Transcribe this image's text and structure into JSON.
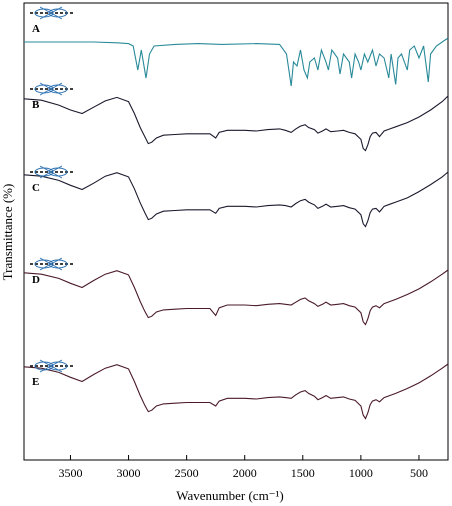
{
  "chart_data": {
    "type": "line",
    "xlabel": "Wavenumber (cm⁻¹)",
    "ylabel": "Transmittance (%)",
    "xlim": [
      3900,
      250
    ],
    "x_reversed": true,
    "x_ticks": [
      3500,
      3000,
      2500,
      2000,
      1500,
      1000,
      500
    ],
    "y_ticks_shown": false,
    "grid": false,
    "legend": "none",
    "series": [
      {
        "label": "A",
        "color": "#2a8a9a",
        "points": [
          [
            3900,
            0.55
          ],
          [
            3700,
            0.55
          ],
          [
            3300,
            0.55
          ],
          [
            3100,
            0.54
          ],
          [
            3000,
            0.53
          ],
          [
            2960,
            0.5
          ],
          [
            2920,
            0.2
          ],
          [
            2890,
            0.45
          ],
          [
            2850,
            0.1
          ],
          [
            2820,
            0.4
          ],
          [
            2780,
            0.5
          ],
          [
            2600,
            0.52
          ],
          [
            2400,
            0.53
          ],
          [
            2200,
            0.52
          ],
          [
            1900,
            0.53
          ],
          [
            1700,
            0.52
          ],
          [
            1640,
            0.4
          ],
          [
            1600,
            0.0
          ],
          [
            1580,
            0.3
          ],
          [
            1550,
            0.25
          ],
          [
            1520,
            0.45
          ],
          [
            1490,
            0.2
          ],
          [
            1460,
            0.1
          ],
          [
            1440,
            0.3
          ],
          [
            1400,
            0.35
          ],
          [
            1370,
            0.2
          ],
          [
            1340,
            0.45
          ],
          [
            1300,
            0.3
          ],
          [
            1280,
            0.2
          ],
          [
            1250,
            0.45
          ],
          [
            1200,
            0.35
          ],
          [
            1180,
            0.15
          ],
          [
            1150,
            0.4
          ],
          [
            1100,
            0.3
          ],
          [
            1080,
            0.1
          ],
          [
            1050,
            0.4
          ],
          [
            1020,
            0.3
          ],
          [
            1000,
            0.2
          ],
          [
            970,
            0.4
          ],
          [
            940,
            0.3
          ],
          [
            900,
            0.45
          ],
          [
            870,
            0.25
          ],
          [
            840,
            0.4
          ],
          [
            800,
            0.35
          ],
          [
            760,
            0.1
          ],
          [
            740,
            0.4
          ],
          [
            700,
            0.02
          ],
          [
            680,
            0.35
          ],
          [
            650,
            0.4
          ],
          [
            600,
            0.2
          ],
          [
            580,
            0.45
          ],
          [
            540,
            0.5
          ],
          [
            500,
            0.35
          ],
          [
            460,
            0.5
          ],
          [
            420,
            0.05
          ],
          [
            400,
            0.4
          ],
          [
            350,
            0.5
          ],
          [
            300,
            0.55
          ],
          [
            250,
            0.6
          ]
        ]
      },
      {
        "label": "B",
        "color": "#1a1a2e",
        "points": [
          [
            3900,
            0.76
          ],
          [
            3750,
            0.74
          ],
          [
            3600,
            0.67
          ],
          [
            3500,
            0.6
          ],
          [
            3400,
            0.55
          ],
          [
            3300,
            0.64
          ],
          [
            3200,
            0.73
          ],
          [
            3100,
            0.78
          ],
          [
            3000,
            0.72
          ],
          [
            2950,
            0.55
          ],
          [
            2900,
            0.35
          ],
          [
            2860,
            0.22
          ],
          [
            2830,
            0.12
          ],
          [
            2800,
            0.14
          ],
          [
            2760,
            0.2
          ],
          [
            2700,
            0.24
          ],
          [
            2600,
            0.25
          ],
          [
            2500,
            0.26
          ],
          [
            2400,
            0.26
          ],
          [
            2300,
            0.26
          ],
          [
            2250,
            0.2
          ],
          [
            2220,
            0.28
          ],
          [
            2150,
            0.31
          ],
          [
            2000,
            0.31
          ],
          [
            1900,
            0.3
          ],
          [
            1800,
            0.32
          ],
          [
            1700,
            0.33
          ],
          [
            1650,
            0.31
          ],
          [
            1600,
            0.28
          ],
          [
            1560,
            0.33
          ],
          [
            1520,
            0.37
          ],
          [
            1480,
            0.39
          ],
          [
            1450,
            0.35
          ],
          [
            1400,
            0.32
          ],
          [
            1370,
            0.27
          ],
          [
            1330,
            0.3
          ],
          [
            1300,
            0.33
          ],
          [
            1260,
            0.29
          ],
          [
            1200,
            0.3
          ],
          [
            1150,
            0.31
          ],
          [
            1100,
            0.28
          ],
          [
            1050,
            0.26
          ],
          [
            1000,
            0.18
          ],
          [
            980,
            0.05
          ],
          [
            960,
            0.02
          ],
          [
            940,
            0.1
          ],
          [
            920,
            0.22
          ],
          [
            900,
            0.27
          ],
          [
            870,
            0.28
          ],
          [
            840,
            0.22
          ],
          [
            800,
            0.3
          ],
          [
            750,
            0.33
          ],
          [
            700,
            0.36
          ],
          [
            600,
            0.42
          ],
          [
            500,
            0.5
          ],
          [
            400,
            0.6
          ],
          [
            300,
            0.72
          ],
          [
            250,
            0.8
          ]
        ]
      },
      {
        "label": "C",
        "color": "#1a1a2e",
        "points": [
          [
            3900,
            0.76
          ],
          [
            3750,
            0.74
          ],
          [
            3600,
            0.68
          ],
          [
            3500,
            0.61
          ],
          [
            3400,
            0.55
          ],
          [
            3300,
            0.64
          ],
          [
            3200,
            0.74
          ],
          [
            3100,
            0.79
          ],
          [
            3000,
            0.73
          ],
          [
            2950,
            0.56
          ],
          [
            2900,
            0.36
          ],
          [
            2860,
            0.22
          ],
          [
            2830,
            0.12
          ],
          [
            2800,
            0.14
          ],
          [
            2760,
            0.2
          ],
          [
            2700,
            0.24
          ],
          [
            2600,
            0.25
          ],
          [
            2500,
            0.26
          ],
          [
            2400,
            0.26
          ],
          [
            2300,
            0.26
          ],
          [
            2250,
            0.21
          ],
          [
            2220,
            0.28
          ],
          [
            2150,
            0.31
          ],
          [
            2000,
            0.31
          ],
          [
            1900,
            0.3
          ],
          [
            1800,
            0.32
          ],
          [
            1700,
            0.33
          ],
          [
            1650,
            0.32
          ],
          [
            1600,
            0.3
          ],
          [
            1560,
            0.35
          ],
          [
            1520,
            0.39
          ],
          [
            1480,
            0.41
          ],
          [
            1450,
            0.37
          ],
          [
            1400,
            0.33
          ],
          [
            1370,
            0.28
          ],
          [
            1330,
            0.31
          ],
          [
            1300,
            0.34
          ],
          [
            1260,
            0.3
          ],
          [
            1200,
            0.31
          ],
          [
            1150,
            0.32
          ],
          [
            1100,
            0.29
          ],
          [
            1050,
            0.27
          ],
          [
            1000,
            0.19
          ],
          [
            980,
            0.06
          ],
          [
            960,
            0.02
          ],
          [
            940,
            0.1
          ],
          [
            920,
            0.22
          ],
          [
            900,
            0.27
          ],
          [
            870,
            0.28
          ],
          [
            840,
            0.23
          ],
          [
            800,
            0.31
          ],
          [
            750,
            0.34
          ],
          [
            700,
            0.37
          ],
          [
            600,
            0.43
          ],
          [
            500,
            0.52
          ],
          [
            400,
            0.62
          ],
          [
            300,
            0.73
          ],
          [
            250,
            0.8
          ]
        ]
      },
      {
        "label": "D",
        "color": "#4a1a2a",
        "points": [
          [
            3900,
            0.76
          ],
          [
            3750,
            0.74
          ],
          [
            3600,
            0.68
          ],
          [
            3500,
            0.61
          ],
          [
            3400,
            0.55
          ],
          [
            3300,
            0.65
          ],
          [
            3200,
            0.74
          ],
          [
            3100,
            0.79
          ],
          [
            3000,
            0.73
          ],
          [
            2950,
            0.55
          ],
          [
            2900,
            0.35
          ],
          [
            2860,
            0.21
          ],
          [
            2830,
            0.12
          ],
          [
            2800,
            0.14
          ],
          [
            2760,
            0.2
          ],
          [
            2700,
            0.23
          ],
          [
            2600,
            0.24
          ],
          [
            2500,
            0.25
          ],
          [
            2400,
            0.25
          ],
          [
            2300,
            0.25
          ],
          [
            2250,
            0.15
          ],
          [
            2220,
            0.26
          ],
          [
            2150,
            0.3
          ],
          [
            2000,
            0.3
          ],
          [
            1900,
            0.29
          ],
          [
            1800,
            0.31
          ],
          [
            1700,
            0.32
          ],
          [
            1650,
            0.31
          ],
          [
            1600,
            0.3
          ],
          [
            1560,
            0.34
          ],
          [
            1520,
            0.38
          ],
          [
            1480,
            0.4
          ],
          [
            1450,
            0.36
          ],
          [
            1400,
            0.32
          ],
          [
            1370,
            0.28
          ],
          [
            1330,
            0.31
          ],
          [
            1300,
            0.34
          ],
          [
            1260,
            0.3
          ],
          [
            1200,
            0.31
          ],
          [
            1150,
            0.32
          ],
          [
            1100,
            0.29
          ],
          [
            1050,
            0.27
          ],
          [
            1000,
            0.19
          ],
          [
            980,
            0.06
          ],
          [
            960,
            0.02
          ],
          [
            940,
            0.1
          ],
          [
            920,
            0.22
          ],
          [
            900,
            0.27
          ],
          [
            870,
            0.29
          ],
          [
            840,
            0.26
          ],
          [
            800,
            0.32
          ],
          [
            750,
            0.35
          ],
          [
            700,
            0.38
          ],
          [
            600,
            0.45
          ],
          [
            500,
            0.53
          ],
          [
            400,
            0.63
          ],
          [
            300,
            0.74
          ],
          [
            250,
            0.8
          ]
        ]
      },
      {
        "label": "E",
        "color": "#4a1a2a",
        "points": [
          [
            3900,
            0.76
          ],
          [
            3750,
            0.74
          ],
          [
            3600,
            0.68
          ],
          [
            3500,
            0.61
          ],
          [
            3400,
            0.55
          ],
          [
            3300,
            0.65
          ],
          [
            3200,
            0.74
          ],
          [
            3100,
            0.79
          ],
          [
            3000,
            0.73
          ],
          [
            2950,
            0.55
          ],
          [
            2900,
            0.35
          ],
          [
            2860,
            0.21
          ],
          [
            2830,
            0.12
          ],
          [
            2800,
            0.14
          ],
          [
            2760,
            0.2
          ],
          [
            2700,
            0.23
          ],
          [
            2600,
            0.24
          ],
          [
            2500,
            0.25
          ],
          [
            2400,
            0.25
          ],
          [
            2300,
            0.25
          ],
          [
            2250,
            0.2
          ],
          [
            2220,
            0.27
          ],
          [
            2150,
            0.31
          ],
          [
            2000,
            0.31
          ],
          [
            1900,
            0.3
          ],
          [
            1800,
            0.32
          ],
          [
            1700,
            0.33
          ],
          [
            1650,
            0.32
          ],
          [
            1600,
            0.31
          ],
          [
            1560,
            0.36
          ],
          [
            1520,
            0.4
          ],
          [
            1480,
            0.42
          ],
          [
            1450,
            0.38
          ],
          [
            1400,
            0.34
          ],
          [
            1370,
            0.29
          ],
          [
            1330,
            0.32
          ],
          [
            1300,
            0.35
          ],
          [
            1260,
            0.31
          ],
          [
            1200,
            0.32
          ],
          [
            1150,
            0.33
          ],
          [
            1100,
            0.3
          ],
          [
            1050,
            0.28
          ],
          [
            1000,
            0.2
          ],
          [
            980,
            0.07
          ],
          [
            960,
            0.02
          ],
          [
            940,
            0.1
          ],
          [
            920,
            0.22
          ],
          [
            900,
            0.27
          ],
          [
            870,
            0.29
          ],
          [
            840,
            0.26
          ],
          [
            800,
            0.32
          ],
          [
            750,
            0.35
          ],
          [
            700,
            0.38
          ],
          [
            600,
            0.45
          ],
          [
            500,
            0.53
          ],
          [
            400,
            0.63
          ],
          [
            300,
            0.74
          ],
          [
            250,
            0.8
          ]
        ]
      }
    ],
    "structure_icon_color": "#2a6fb0"
  }
}
